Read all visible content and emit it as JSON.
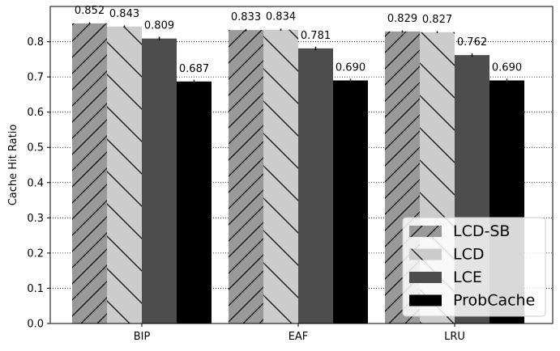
{
  "chart_data": {
    "type": "bar",
    "title": "",
    "xlabel": "",
    "ylabel": "Cache Hit Ratio",
    "categories": [
      "BIP",
      "EAF",
      "LRU"
    ],
    "ylim": [
      0,
      0.9
    ],
    "yticks": [
      "0.0",
      "0.1",
      "0.2",
      "0.3",
      "0.4",
      "0.5",
      "0.6",
      "0.7",
      "0.8"
    ],
    "grid": "horizontal-dotted",
    "legend_position": "lower-right",
    "series": [
      {
        "name": "LCD-SB",
        "values": [
          0.852,
          0.833,
          0.829
        ],
        "labels": [
          "0.852",
          "0.833",
          "0.829"
        ],
        "errors": [
          0.003,
          0.003,
          0.003
        ],
        "color": "#999999",
        "hatch": "forward-diagonal"
      },
      {
        "name": "LCD",
        "values": [
          0.843,
          0.834,
          0.827
        ],
        "labels": [
          "0.843",
          "0.834",
          "0.827"
        ],
        "errors": [
          0.003,
          0.003,
          0.003
        ],
        "color": "#cccccc",
        "hatch": "back-diagonal"
      },
      {
        "name": "LCE",
        "values": [
          0.809,
          0.781,
          0.762
        ],
        "labels": [
          "0.809",
          "0.781",
          "0.762"
        ],
        "errors": [
          0.005,
          0.005,
          0.005
        ],
        "color": "#4d4d4d",
        "hatch": "none"
      },
      {
        "name": "ProbCache",
        "values": [
          0.687,
          0.69,
          0.69
        ],
        "labels": [
          "0.687",
          "0.690",
          "0.690"
        ],
        "errors": [
          0.005,
          0.005,
          0.005
        ],
        "color": "#000000",
        "hatch": "none"
      }
    ]
  }
}
